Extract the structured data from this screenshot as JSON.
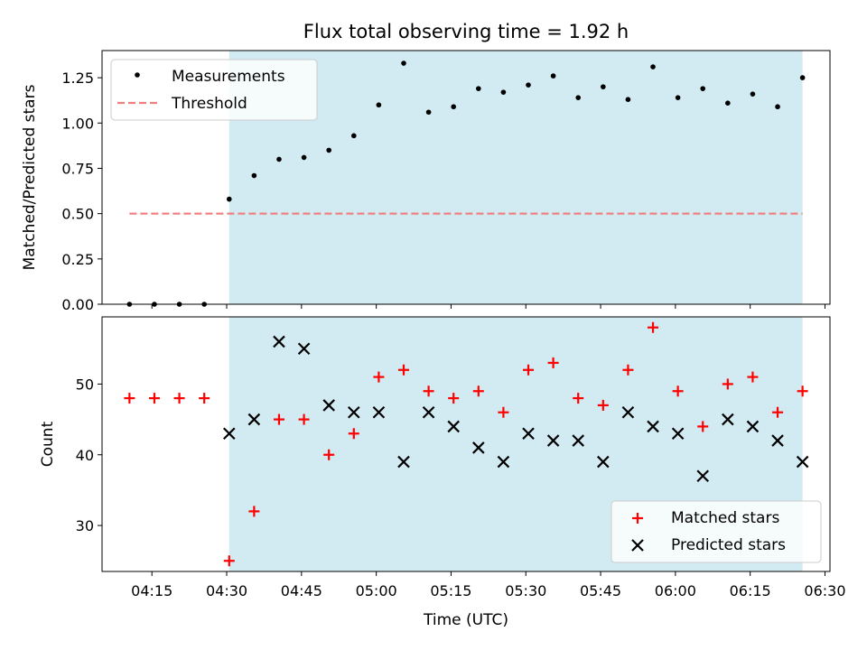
{
  "title": "Flux total observing time = 1.92 h",
  "colors": {
    "shade": "#add8e6",
    "measurement": "#000000",
    "threshold": "#f08080",
    "matched": "#ff0000",
    "predicted": "#000000"
  },
  "chart_data": [
    {
      "type": "scatter",
      "ylabel": "Matched/Predicted stars",
      "ylim": [
        0,
        1.4
      ],
      "yticks": [
        0.0,
        0.25,
        0.5,
        0.75,
        1.0,
        1.25
      ],
      "ytick_labels": [
        "0.00",
        "0.25",
        "0.50",
        "0.75",
        "1.00",
        "1.25"
      ],
      "xlim": [
        "04:05",
        "06:31"
      ],
      "shaded_span": [
        "04:30:30",
        "06:25:30"
      ],
      "legend": {
        "placement": "upper left",
        "entries": [
          "Measurements",
          "Threshold"
        ]
      },
      "series": [
        {
          "name": "Measurements",
          "marker": "dot",
          "x": [
            "04:10:30",
            "04:15:30",
            "04:20:30",
            "04:25:30",
            "04:30:30",
            "04:35:30",
            "04:40:30",
            "04:45:30",
            "04:50:30",
            "04:55:30",
            "05:00:30",
            "05:05:30",
            "05:10:30",
            "05:15:30",
            "05:20:30",
            "05:25:30",
            "05:30:30",
            "05:35:30",
            "05:40:30",
            "05:45:30",
            "05:50:30",
            "05:55:30",
            "06:00:30",
            "06:05:30",
            "06:10:30",
            "06:15:30",
            "06:20:30",
            "06:25:30"
          ],
          "y": [
            0,
            0,
            0,
            0,
            0.58,
            0.71,
            0.8,
            0.81,
            0.85,
            0.93,
            1.1,
            1.33,
            1.06,
            1.09,
            1.19,
            1.17,
            1.21,
            1.26,
            1.14,
            1.2,
            1.13,
            1.31,
            1.14,
            1.19,
            1.11,
            1.16,
            1.09,
            1.25
          ]
        },
        {
          "name": "Threshold",
          "type": "line",
          "style": "dashed",
          "x": [
            "04:10:30",
            "06:25:30"
          ],
          "y": [
            0.5,
            0.5
          ]
        }
      ]
    },
    {
      "type": "scatter",
      "xlabel": "Time (UTC)",
      "ylabel": "Count",
      "ylim": [
        23.5,
        59.5
      ],
      "yticks": [
        30,
        40,
        50
      ],
      "ytick_labels": [
        "30",
        "40",
        "50"
      ],
      "xticks": [
        "04:15",
        "04:30",
        "04:45",
        "05:00",
        "05:15",
        "05:30",
        "05:45",
        "06:00",
        "06:15",
        "06:30"
      ],
      "xtick_labels": [
        "04:15",
        "04:30",
        "04:45",
        "05:00",
        "05:15",
        "05:30",
        "05:45",
        "06:00",
        "06:15",
        "06:30"
      ],
      "shaded_span": [
        "04:30:30",
        "06:25:30"
      ],
      "legend": {
        "placement": "lower right",
        "entries": [
          "Matched stars",
          "Predicted stars"
        ]
      },
      "series": [
        {
          "name": "Matched stars",
          "marker": "plus",
          "x": [
            "04:10:30",
            "04:15:30",
            "04:20:30",
            "04:25:30",
            "04:30:30",
            "04:35:30",
            "04:40:30",
            "04:45:30",
            "04:50:30",
            "04:55:30",
            "05:00:30",
            "05:05:30",
            "05:10:30",
            "05:15:30",
            "05:20:30",
            "05:25:30",
            "05:30:30",
            "05:35:30",
            "05:40:30",
            "05:45:30",
            "05:50:30",
            "05:55:30",
            "06:00:30",
            "06:05:30",
            "06:10:30",
            "06:15:30",
            "06:20:30",
            "06:25:30"
          ],
          "y": [
            48,
            48,
            48,
            48,
            25,
            32,
            45,
            45,
            40,
            43,
            51,
            52,
            49,
            48,
            49,
            46,
            52,
            53,
            48,
            47,
            52,
            58,
            49,
            44,
            50,
            51,
            46,
            49
          ]
        },
        {
          "name": "Predicted stars",
          "marker": "x",
          "x": [
            "04:30:30",
            "04:35:30",
            "04:40:30",
            "04:45:30",
            "04:50:30",
            "04:55:30",
            "05:00:30",
            "05:05:30",
            "05:10:30",
            "05:15:30",
            "05:20:30",
            "05:25:30",
            "05:30:30",
            "05:35:30",
            "05:40:30",
            "05:45:30",
            "05:50:30",
            "05:55:30",
            "06:00:30",
            "06:05:30",
            "06:10:30",
            "06:15:30",
            "06:20:30",
            "06:25:30"
          ],
          "y": [
            43,
            45,
            56,
            55,
            47,
            46,
            46,
            39,
            46,
            44,
            41,
            39,
            43,
            42,
            42,
            39,
            46,
            44,
            43,
            37,
            45,
            44,
            42,
            39
          ]
        }
      ]
    }
  ]
}
